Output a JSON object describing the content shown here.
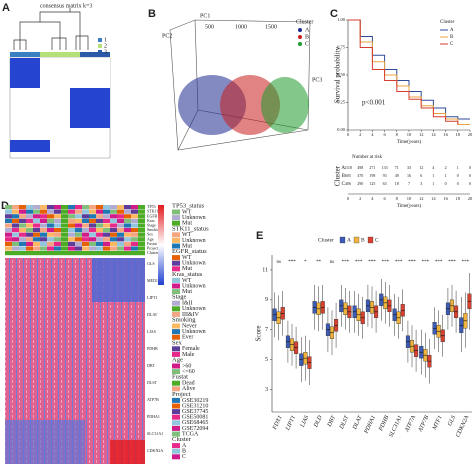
{
  "panels": {
    "A": {
      "label": "A",
      "title": "consensus matrix k=3",
      "legend": [
        "1",
        "2",
        "3"
      ]
    },
    "B": {
      "label": "B",
      "axes": [
        "PC1",
        "PC2",
        "PC3"
      ],
      "ticks": [
        "500",
        "1000",
        "1500"
      ],
      "legend_title": "Cluster",
      "legend": [
        "A",
        "B",
        "C"
      ]
    },
    "D": {
      "label": "D",
      "annotations": [
        "TP53",
        "STK11",
        "EGFR",
        "Kras",
        "Stage",
        "Smoking",
        "Sex",
        "Age",
        "Fustat",
        "Project",
        "Cluster"
      ],
      "genes": [
        "GLS",
        "MED1",
        "LIPT1",
        "DLAT",
        "LIAS",
        "PDHB",
        "DBT",
        "DLST",
        "ATP7B",
        "PDHA1",
        "SLC31A1",
        "CDKN2A"
      ],
      "legend": [
        {
          "title": "TP53_status",
          "items": [
            "WT",
            "Unknown",
            "Mut"
          ]
        },
        {
          "title": "STK11_status",
          "items": [
            "WT",
            "Unknown",
            "Mut"
          ]
        },
        {
          "title": "EGFR_status",
          "items": [
            "WT",
            "Unknown",
            "Mut"
          ]
        },
        {
          "title": "Kras_status",
          "items": [
            "WT",
            "Unknown",
            "Mut"
          ]
        },
        {
          "title": "Stage",
          "items": [
            "I&II",
            "Unknown",
            "III&IV"
          ]
        },
        {
          "title": "Smoking",
          "items": [
            "Never",
            "Unknown",
            "Ever"
          ]
        },
        {
          "title": "Sex",
          "items": [
            "Female",
            "Male"
          ]
        },
        {
          "title": "Age",
          "items": [
            ">60",
            "<=60"
          ]
        },
        {
          "title": "Fustat",
          "items": [
            "Dead",
            "Alive"
          ]
        },
        {
          "title": "Project",
          "items": [
            "GSE30219",
            "GSE31210",
            "GSE37745",
            "GSE50081",
            "GSE68465",
            "GSE72094",
            "TCGA"
          ]
        },
        {
          "title": "Cluster",
          "items": [
            "A",
            "B",
            "C"
          ]
        }
      ]
    }
  },
  "chart_data": [
    {
      "type": "survival",
      "label": "C",
      "ylabel": "Survival probability",
      "xlabel": "Time(years)",
      "annotation": "p<0.001",
      "legend_title": "Cluster",
      "x": [
        0,
        2,
        4,
        6,
        8,
        10,
        12,
        14,
        16,
        18,
        20
      ],
      "xlim": [
        0,
        20
      ],
      "xticks": [
        0,
        2,
        4,
        6,
        8,
        10,
        12,
        14,
        16,
        18,
        20
      ],
      "ylim": [
        0,
        1
      ],
      "yticks": [
        {
          "value": 0,
          "label": "0.00"
        },
        {
          "value": 0.25,
          "label": "0.25"
        },
        {
          "value": 0.5,
          "label": "0.50"
        },
        {
          "value": 0.75,
          "label": "0.75"
        },
        {
          "value": 1,
          "label": "1.00"
        }
      ],
      "series": [
        {
          "name": "A",
          "color": "#2f4b9c",
          "values": [
            1,
            0.85,
            0.68,
            0.55,
            0.45,
            0.35,
            0.27,
            0.2,
            0.12,
            0.1,
            0.1
          ]
        },
        {
          "name": "B",
          "color": "#e8a33d",
          "values": [
            1,
            0.8,
            0.62,
            0.5,
            0.4,
            0.3,
            0.22,
            0.15,
            0.1,
            0.05,
            0.05
          ]
        },
        {
          "name": "C",
          "color": "#d43d2f",
          "values": [
            1,
            0.75,
            0.55,
            0.45,
            0.35,
            0.28,
            0.2,
            0.12,
            0.08,
            0.05,
            null
          ]
        }
      ],
      "risk_table": {
        "title": "Number at risk",
        "ylabel": "Cluster",
        "xlabel": "Time(years)",
        "rows": [
          {
            "name": "A",
            "values": [
              1118,
              498,
              271,
              133,
              71,
              33,
              12,
              4,
              2,
              1,
              0
            ]
          },
          {
            "name": "B",
            "values": [
              605,
              370,
              198,
              93,
              49,
              16,
              6,
              1,
              1,
              0,
              0
            ]
          },
          {
            "name": "C",
            "values": [
              406,
              290,
              125,
              63,
              18,
              7,
              3,
              1,
              0,
              0,
              0
            ]
          }
        ]
      }
    },
    {
      "type": "box",
      "label": "E",
      "ylabel": "Score",
      "legend_title": "Cluster",
      "categories": [
        "FDX1",
        "LIPT1",
        "LIAS",
        "DLD",
        "DBT",
        "DLST",
        "DLAT",
        "PDHA1",
        "PDHB",
        "SLC31A1",
        "ATP7A",
        "ATP7B",
        "MTF1",
        "GLS",
        "CDKN2A"
      ],
      "significance": [
        "ns",
        "***",
        "*",
        "**",
        "ns",
        "***",
        "***",
        "***",
        "***",
        "***",
        "***",
        "***",
        "***",
        "***",
        "***"
      ],
      "ylim": [
        1.5,
        12
      ],
      "yticks": [
        3,
        5,
        7,
        9,
        11
      ],
      "series": [
        {
          "name": "A",
          "color": "#3b5bb5",
          "values": [
            [
              6.5,
              7.6,
              8,
              8.4,
              9.5
            ],
            [
              4.8,
              5.8,
              6.2,
              6.6,
              7.6
            ],
            [
              3.5,
              4.6,
              5,
              5.4,
              6.5
            ],
            [
              7,
              8.1,
              8.5,
              8.9,
              10
            ],
            [
              5.5,
              6.6,
              7,
              7.4,
              8.5
            ],
            [
              7.2,
              8.2,
              8.6,
              9,
              10
            ],
            [
              6.8,
              7.8,
              8.2,
              8.6,
              9.6
            ],
            [
              7.2,
              8.2,
              8.6,
              9,
              10
            ],
            [
              7.6,
              8.6,
              9,
              9.4,
              10.4
            ],
            [
              6.6,
              7.6,
              8,
              8.4,
              9.4
            ],
            [
              4.8,
              5.8,
              6.2,
              6.6,
              7.6
            ],
            [
              4,
              5.1,
              5.5,
              5.9,
              7
            ],
            [
              5.7,
              6.7,
              7.1,
              7.5,
              8.5
            ],
            [
              7,
              8,
              8.4,
              8.8,
              9.8
            ],
            [
              5.5,
              6.8,
              7.3,
              7.8,
              9.2
            ]
          ]
        },
        {
          "name": "B",
          "color": "#f0b43c",
          "values": [
            [
              6.3,
              7.4,
              7.8,
              8.2,
              9.3
            ],
            [
              4.6,
              5.6,
              6,
              6.4,
              7.4
            ],
            [
              3.6,
              4.7,
              5.1,
              5.5,
              6.6
            ],
            [
              6.9,
              8,
              8.4,
              8.8,
              9.9
            ],
            [
              5.3,
              6.4,
              6.8,
              7.2,
              8.3
            ],
            [
              7,
              8,
              8.4,
              8.8,
              9.8
            ],
            [
              6.6,
              7.6,
              8,
              8.4,
              9.4
            ],
            [
              7.1,
              8.1,
              8.5,
              8.9,
              9.9
            ],
            [
              7.4,
              8.4,
              8.8,
              9.2,
              10.2
            ],
            [
              6.4,
              7.4,
              7.8,
              8.2,
              9.2
            ],
            [
              4.5,
              5.5,
              5.9,
              6.3,
              7.3
            ],
            [
              3.8,
              4.9,
              5.3,
              5.7,
              6.8
            ],
            [
              5.5,
              6.5,
              6.9,
              7.3,
              8.3
            ],
            [
              7.2,
              8.2,
              8.6,
              9,
              10
            ],
            [
              5.8,
              7.1,
              7.6,
              8.1,
              9.5
            ]
          ]
        },
        {
          "name": "C",
          "color": "#d9412f",
          "values": [
            [
              6.6,
              7.7,
              8.1,
              8.5,
              9.6
            ],
            [
              4.4,
              5.4,
              5.8,
              6.2,
              7.2
            ],
            [
              3.3,
              4.4,
              4.8,
              5.2,
              6.3
            ],
            [
              7,
              8.1,
              8.5,
              8.9,
              10
            ],
            [
              5.8,
              6.9,
              7.3,
              7.7,
              8.8
            ],
            [
              6.8,
              7.8,
              8.2,
              8.6,
              9.6
            ],
            [
              6.4,
              7.4,
              7.8,
              8.2,
              9.2
            ],
            [
              6.8,
              7.8,
              8.2,
              8.6,
              9.6
            ],
            [
              7.2,
              8.2,
              8.6,
              9,
              10
            ],
            [
              6.9,
              7.9,
              8.3,
              8.7,
              9.7
            ],
            [
              4.2,
              5.2,
              5.6,
              6,
              7
            ],
            [
              3.4,
              4.5,
              4.9,
              5.3,
              6.4
            ],
            [
              5.2,
              6.2,
              6.6,
              7,
              8
            ],
            [
              6.8,
              7.8,
              8.2,
              8.6,
              9.6
            ],
            [
              7,
              8.4,
              8.9,
              9.4,
              10.8
            ]
          ]
        }
      ]
    }
  ]
}
